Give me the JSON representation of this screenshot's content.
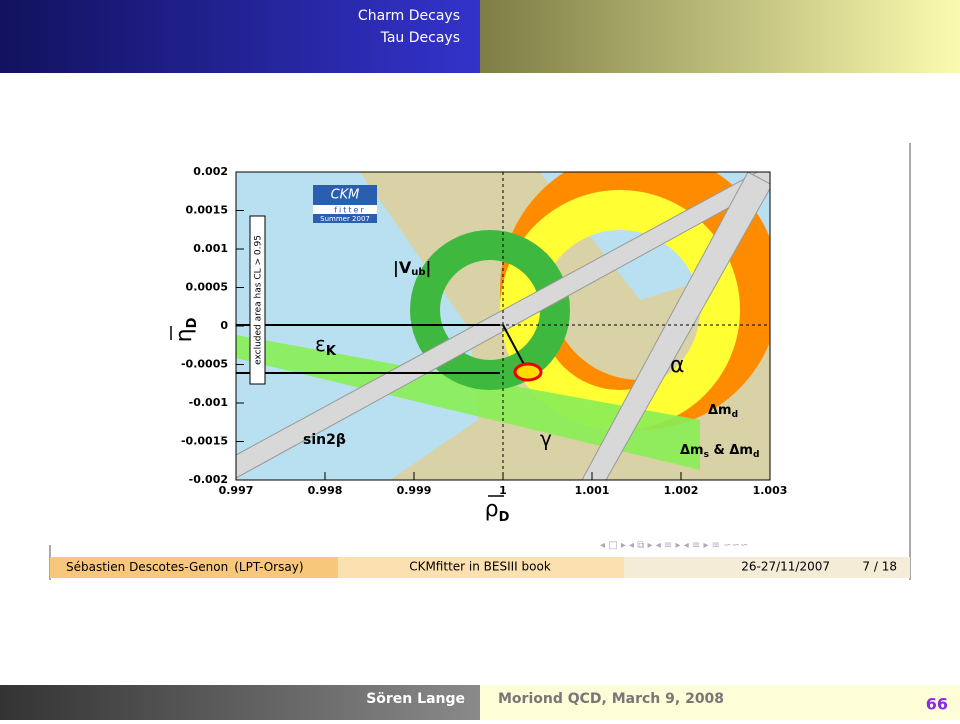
{
  "header": {
    "items": [
      "Charm Decays",
      "Tau Decays"
    ]
  },
  "chart_data": {
    "type": "constraint-plot",
    "x_label": {
      "symbol": "ρ",
      "subscript": "D"
    },
    "y_label": {
      "symbol": "η",
      "subscript": "D"
    },
    "xlim": [
      0.997,
      1.003
    ],
    "xticks": [
      0.997,
      0.998,
      0.999,
      1,
      1.001,
      1.002,
      1.003
    ],
    "ylim": [
      -0.002,
      0.002
    ],
    "yticks": [
      0.002,
      0.0015,
      0.001,
      0.0005,
      0,
      -0.0005,
      -0.001,
      -0.0015,
      -0.002
    ],
    "logo": {
      "title": "CKM",
      "subtitle": "fitter",
      "edition": "Summer 2007"
    },
    "annotations": {
      "excluded": "excluded area has CL > 0.95",
      "vub": {
        "text": "|V",
        "subscript": "ub",
        "close": "|"
      },
      "epsk": {
        "text": "ε",
        "subscript": "K"
      },
      "alpha": "α",
      "gamma": "γ",
      "sin2b": "sin2β",
      "dmd": {
        "text": "Δm",
        "subscript": "d"
      },
      "dms": {
        "text": "Δm",
        "subscript": "s",
        "join": " & Δm",
        "subscript2": "d"
      }
    }
  },
  "slide_footer": {
    "author": "Sébastien Descotes-Genon",
    "affiliation": "(LPT-Orsay)",
    "title": "CKMfitter in BESIII book",
    "date": "26-27/11/2007",
    "page": "7 / 18"
  },
  "footer": {
    "speaker": "Sören Lange",
    "event": "Moriond QCD, March 9, 2008",
    "page": "66"
  }
}
